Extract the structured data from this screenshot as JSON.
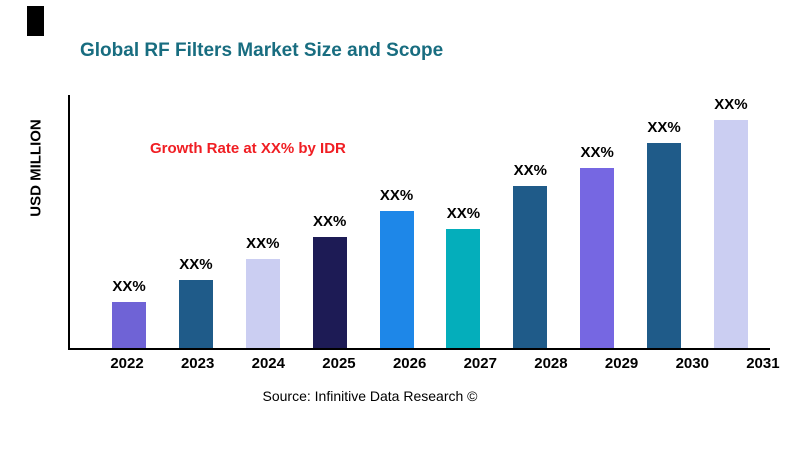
{
  "annotation_note": "",
  "source": "Source: Infinitive Data Research ©",
  "chart_data": {
    "type": "bar",
    "title": "Global RF Filters Market Size and Scope",
    "xlabel": "",
    "ylabel": "USD MILLION",
    "annotation": "Growth Rate at XX% by IDR",
    "categories": [
      "2022",
      "2023",
      "2024",
      "2025",
      "2026",
      "2027",
      "2028",
      "2029",
      "2030",
      "2031"
    ],
    "values": [
      18,
      27,
      35,
      44,
      54,
      47,
      64,
      71,
      81,
      90
    ],
    "bar_labels": [
      "XX%",
      "XX%",
      "XX%",
      "XX%",
      "XX%",
      "XX%",
      "XX%",
      "XX%",
      "XX%",
      "XX%"
    ],
    "bar_colors": [
      "#6F63D6",
      "#1F5B89",
      "#CBCEF2",
      "#1D1B55",
      "#1E87E8",
      "#04AEBB",
      "#1F5B89",
      "#7667E2",
      "#1F5B89",
      "#CBCEF2"
    ],
    "ylim": [
      0,
      100
    ],
    "grid": false,
    "legend": false,
    "colors": {
      "title": "#186D80",
      "annotation": "#F01E23",
      "axis": "#000000"
    }
  }
}
